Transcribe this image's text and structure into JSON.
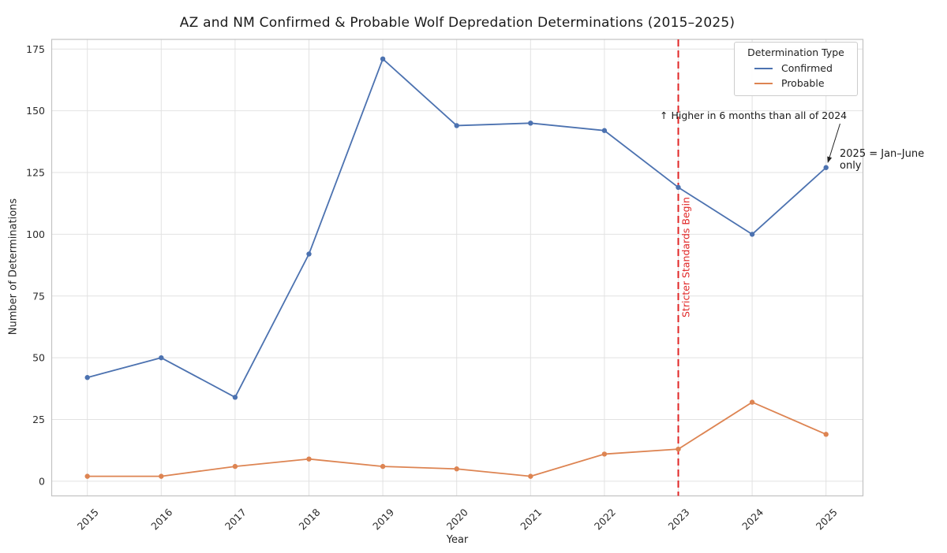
{
  "colors": {
    "grid": "#e2e2e2",
    "spine": "#c2c2c2",
    "tick_text": "#2b2b2b",
    "annotation_text": "#1a1a1a",
    "marker_and_line_width": "1.8"
  },
  "chart_data": {
    "type": "line",
    "title": "AZ and NM Confirmed & Probable Wolf Depredation Determinations (2015–2025)",
    "xlabel": "Year",
    "ylabel": "Number of Determinations",
    "categories": [
      2015,
      2016,
      2017,
      2018,
      2019,
      2020,
      2021,
      2022,
      2023,
      2024,
      2025
    ],
    "series": [
      {
        "name": "Confirmed",
        "color": "#4C72B0",
        "values": [
          42,
          50,
          34,
          92,
          171,
          144,
          145,
          142,
          119,
          100,
          127
        ]
      },
      {
        "name": "Probable",
        "color": "#DD8452",
        "values": [
          2,
          2,
          6,
          9,
          6,
          5,
          2,
          11,
          13,
          32,
          19
        ]
      }
    ],
    "y_ticks": [
      0,
      25,
      50,
      75,
      100,
      125,
      150,
      175
    ],
    "ylim": [
      -6,
      179
    ],
    "grid": true,
    "legend_title": "Determination Type",
    "legend_position": "upper right",
    "vline": {
      "x": 2023,
      "label": "Stricter Standards Begin",
      "color": "#E02626",
      "style": "dashed"
    },
    "annotations": {
      "higher_note": "↑ Higher in 6 months than all of 2024",
      "partial_year_note": "2025 = Jan–June only"
    }
  }
}
